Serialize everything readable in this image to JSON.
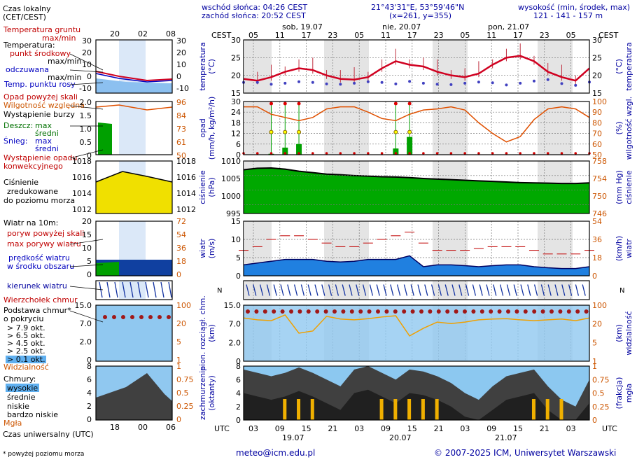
{
  "header": {
    "sunrise": "wschód słońca: 04:26 CEST",
    "sunset": "zachód słońca: 20:52 CEST",
    "coords": "21°43'31\"E, 53°59'46\"N",
    "grid": "(x=261, y=355)",
    "elev_title": "wysokość (min, środek, max)",
    "elev_values": "121 - 141 - 157 m"
  },
  "top_axis": {
    "cest_left": "CEST",
    "cest_right": "CEST",
    "days": [
      "sob, 19.07",
      "nie, 20.07",
      "pon, 21.07"
    ],
    "hours": [
      "05",
      "11",
      "17",
      "23",
      "05",
      "11",
      "17",
      "23",
      "05",
      "11",
      "17",
      "23",
      "05"
    ]
  },
  "bottom_axis": {
    "utc_left": "UTC",
    "utc_right": "UTC",
    "hours": [
      "03",
      "09",
      "15",
      "21",
      "03",
      "09",
      "15",
      "21",
      "03",
      "09",
      "15",
      "21",
      "03"
    ],
    "dates": [
      "19.07",
      "20.07",
      "21.07"
    ]
  },
  "legend": {
    "local_time": "Czas lokalny",
    "local_time2": "(CET/CEST)",
    "ticks": [
      "20",
      "02",
      "08"
    ],
    "ticks_utc": [
      "18",
      "00",
      "06"
    ],
    "utc_label": "Czas uniwersalny (UTC)",
    "footnote": "* powyżej poziomu morza",
    "temp": {
      "soil": "Temperatura gruntu",
      "soil2": "max/min",
      "air": "Temperatura:",
      "mid": "punkt środkowy",
      "max": "max/min",
      "feel": "odczuwana",
      "feel2": "max/min",
      "dew": "Temp. punktu rosy",
      "ticks": [
        "30",
        "20",
        "10",
        "0",
        "-10"
      ]
    },
    "precip": {
      "above": "Opad powyżej skali",
      "humidity": "Wilgotność względna",
      "storm": "Wystąpienie burzy",
      "rain": "Deszcz:",
      "rain_max": "max",
      "rain_mid": "średni",
      "snow": "Śnieg:",
      "snow_max": "max",
      "snow_mid": "średni",
      "occur": "Wystąpienie opadu",
      "occur2": "konwekcyjnego",
      "ticks": [
        "2.0",
        "1.5",
        "1.0",
        "0.5",
        "0"
      ],
      "rticks": [
        "96",
        "84",
        "73",
        "61",
        "50"
      ]
    },
    "pressure": {
      "l1": "Ciśnienie",
      "l2": "zredukowane",
      "l3": "do poziomu morza",
      "ticks": [
        "1018",
        "1016",
        "1014",
        "1012"
      ]
    },
    "wind": {
      "title": "Wiatr na 10m:",
      "gust_above": "poryw powyżej skali",
      "gust_max": "max porywy wiatru",
      "speed": "prędkość wiatru",
      "speed2": "w środku obszaru",
      "ticks": [
        "20",
        "15",
        "10",
        "5",
        "0"
      ],
      "rticks": [
        "72",
        "54",
        "36",
        "18",
        "0"
      ]
    },
    "wind_dir": "kierunek wiatru",
    "cloud_top": "Wierzchołek chmur",
    "cloud_base": {
      "l1": "Podstawa chmur*",
      "l2": "o pokryciu",
      "o79": "> 7.9 okt.",
      "o65": "> 6.5 okt.",
      "o45": "> 4.5 okt.",
      "o25": "> 2.5 okt.",
      "o01": "> 0.1 okt.",
      "vis": "Widzialność",
      "ticks": [
        "15.0",
        "7.0",
        "2.0",
        "0"
      ],
      "rticks": [
        "100",
        "20",
        "5",
        "1"
      ]
    },
    "clouds": {
      "title": "Chmury:",
      "high": "wysokie",
      "mid": "średnie",
      "low": "niskie",
      "vlow": "bardzo niskie",
      "fog": "Mgła",
      "ticks": [
        "8",
        "6",
        "4",
        "2",
        "0"
      ],
      "rticks": [
        "1",
        "0.75",
        "0.5",
        "0.25",
        "0"
      ]
    }
  },
  "panels": {
    "temp": {
      "left": "temperatura",
      "left2": "(°C)",
      "right": "(°C)",
      "right2": "temperatura",
      "ticks": [
        "30",
        "25",
        "20",
        "15"
      ]
    },
    "precip": {
      "left": "opad",
      "left2": "(mm/h, kg/m²/h)",
      "right": "(%)",
      "right2": "wilgotność wzgl.",
      "ticks": [
        "30",
        "24",
        "18",
        "12",
        "6",
        "0"
      ],
      "rticks": [
        "100",
        "90",
        "80",
        "70",
        "60",
        "50"
      ]
    },
    "pressure": {
      "left": "ciśnienie",
      "left2": "(hPa)",
      "right": "(mm Hg)",
      "right2": "ciśnienie",
      "ticks": [
        "1010",
        "1005",
        "1000",
        "995"
      ],
      "rticks": [
        "758",
        "754",
        "750",
        "746"
      ]
    },
    "wind": {
      "left": "wiatr",
      "left2": "(m/s)",
      "right": "(km/h)",
      "right2": "wiatr",
      "ticks": [
        "15",
        "10",
        "5",
        "0"
      ],
      "rticks": [
        "54",
        "36",
        "18",
        "0"
      ]
    },
    "cloud": {
      "left": "pion. rozciągł. chm.",
      "left2": "(km)",
      "right": "(km)",
      "right2": "widzialność",
      "ticks": [
        "15.0",
        "7.0",
        "2.0",
        "0"
      ],
      "rticks": [
        "100",
        "20",
        "5",
        "1"
      ]
    },
    "cover": {
      "left": "zachmurzenie",
      "left2": "(oktanty)",
      "right": "(frakcja)",
      "right2": "mgła",
      "ticks": [
        "8",
        "6",
        "4",
        "2",
        "0"
      ],
      "rticks": [
        "1",
        "0.75",
        "0.5",
        "0.25",
        "0"
      ]
    }
  },
  "footer": {
    "email": "meteo@icm.edu.pl",
    "copyright": "© 2007-2025 ICM, Uniwersytet Warszawski"
  },
  "colors": {
    "temp": "#d00020",
    "dew": "#4040c0",
    "humidity": "#e05000",
    "rain": "#00a000",
    "pressure_green": "#00b000",
    "wind": "#1060d0",
    "cloud_sky": "#90c8f0",
    "visibility": "#f0a000"
  },
  "chart_data": [
    {
      "type": "line",
      "name": "temperature",
      "x": [
        "05",
        "08",
        "11",
        "14",
        "17",
        "20",
        "23",
        "02",
        "05",
        "08",
        "11",
        "14",
        "17",
        "20",
        "23",
        "02",
        "05",
        "08",
        "11",
        "14",
        "17",
        "20",
        "23",
        "02",
        "05",
        "08"
      ],
      "series": [
        {
          "values": [
            19,
            18.5,
            19.5,
            21,
            22,
            21.5,
            20,
            19,
            18.8,
            19.5,
            22,
            24,
            23,
            22.5,
            21,
            20,
            19.5,
            20.5,
            23,
            25,
            25.5,
            24,
            21,
            19.5,
            18.5,
            22
          ]
        }
      ],
      "ylim": [
        15,
        30
      ]
    },
    {
      "type": "line",
      "name": "dew point",
      "series": [
        {
          "values": [
            18,
            18,
            17.5,
            17.8,
            18.2,
            18,
            17.6,
            17.5,
            17.8,
            18.2,
            18,
            17.6,
            18.3,
            17.8,
            17.5,
            17.4,
            17.8,
            18.1,
            17.9,
            17.3,
            17.8,
            18.4,
            18.8,
            17.7,
            17.2,
            18.1
          ]
        }
      ],
      "ylim": [
        15,
        30
      ]
    },
    {
      "type": "line",
      "name": "relative humidity",
      "series": [
        {
          "values": [
            95,
            95,
            88,
            85,
            82,
            85,
            93,
            95,
            95,
            90,
            84,
            82,
            88,
            92,
            93,
            95,
            92,
            80,
            70,
            62,
            67,
            83,
            93,
            95,
            93,
            85
          ]
        }
      ],
      "ylim": [
        50,
        100
      ]
    },
    {
      "type": "bar",
      "name": "precipitation",
      "series": [
        {
          "values": [
            0,
            0,
            0.5,
            4,
            6,
            0,
            0,
            0,
            0,
            0,
            0,
            3.5,
            10,
            0,
            0,
            0,
            0,
            0,
            0,
            0,
            0,
            0,
            0,
            0,
            0,
            0
          ]
        }
      ],
      "ylim": [
        0,
        30
      ]
    },
    {
      "type": "area",
      "name": "pressure",
      "series": [
        {
          "values": [
            1007,
            1007.5,
            1007.6,
            1007.2,
            1006.5,
            1006,
            1005.5,
            1005.3,
            1005,
            1004.8,
            1004.6,
            1004.5,
            1004.3,
            1004,
            1003.8,
            1003.6,
            1003.4,
            1003.2,
            1003,
            1002.8,
            1002.6,
            1002.5,
            1002.4,
            1002.3,
            1002.3,
            1002.5
          ]
        }
      ],
      "ylim": [
        992,
        1010
      ]
    },
    {
      "type": "area",
      "name": "wind speed",
      "series": [
        {
          "values": [
            3,
            3.5,
            4,
            4.5,
            4.5,
            4.5,
            4,
            3.8,
            4,
            4.5,
            4.5,
            4.5,
            5.5,
            2.5,
            3,
            3,
            2.8,
            2.5,
            2.8,
            3,
            3,
            2.5,
            2.2,
            2,
            2,
            2.5
          ]
        }
      ],
      "ylim": [
        0,
        15
      ]
    },
    {
      "type": "line",
      "name": "wind gusts",
      "series": [
        {
          "values": [
            7,
            8,
            10,
            11,
            11,
            10,
            9,
            8,
            8,
            9,
            10,
            11,
            12,
            9,
            7,
            7,
            7,
            7.5,
            8,
            8,
            8,
            7,
            6,
            6,
            6,
            7
          ]
        }
      ],
      "ylim": [
        0,
        15
      ]
    },
    {
      "type": "line",
      "name": "visibility",
      "series": [
        {
          "values": [
            35,
            30,
            28,
            45,
            10,
            12,
            40,
            32,
            30,
            33,
            38,
            42,
            8,
            15,
            25,
            22,
            25,
            30,
            32,
            33,
            30,
            28,
            30,
            32,
            28,
            35
          ]
        }
      ],
      "ylim": [
        1,
        100
      ]
    }
  ]
}
